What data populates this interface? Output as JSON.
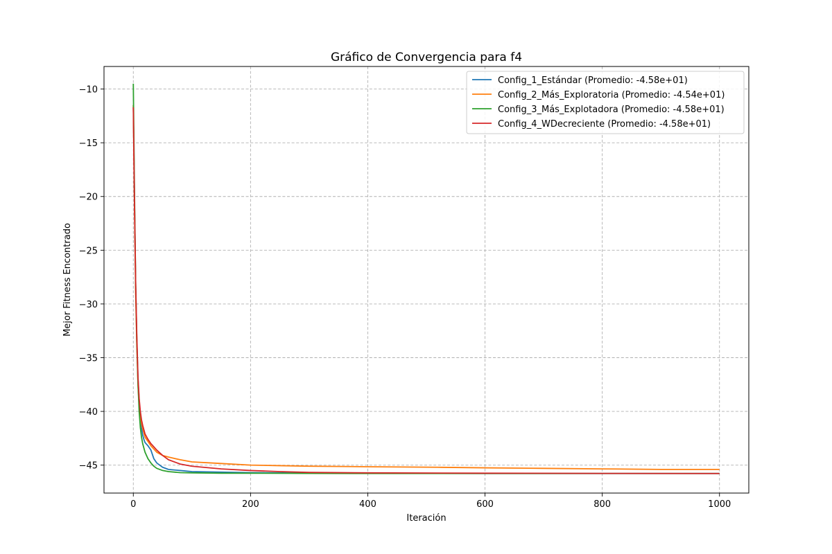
{
  "chart_data": {
    "type": "line",
    "title": "Gráfico de Convergencia para f4",
    "xlabel": "Iteración",
    "ylabel": "Mejor Fitness Encontrado",
    "xlim": [
      -50,
      1050
    ],
    "ylim": [
      -47.6,
      -7.9
    ],
    "xticks": [
      0,
      200,
      400,
      600,
      800,
      1000
    ],
    "xtick_labels": [
      "0",
      "200",
      "400",
      "600",
      "800",
      "1000"
    ],
    "yticks": [
      -10,
      -15,
      -20,
      -25,
      -30,
      -35,
      -40,
      -45
    ],
    "ytick_labels": [
      "−10",
      "−15",
      "−20",
      "−25",
      "−30",
      "−35",
      "−40",
      "−45"
    ],
    "grid": true,
    "legend_position": "top-right",
    "series": [
      {
        "name": "Config_1_Estándar (Promedio: -4.58e+01)",
        "color": "#1f77b4",
        "x": [
          0,
          2,
          4,
          6,
          8,
          10,
          12,
          14,
          16,
          18,
          20,
          25,
          30,
          35,
          40,
          50,
          60,
          80,
          100,
          150,
          200,
          300,
          400,
          600,
          800,
          1000
        ],
        "y": [
          -11.5,
          -20.5,
          -28.5,
          -33.5,
          -37.0,
          -39.0,
          -40.3,
          -41.5,
          -42.2,
          -42.6,
          -42.9,
          -43.2,
          -43.6,
          -44.4,
          -44.8,
          -45.2,
          -45.4,
          -45.5,
          -45.6,
          -45.65,
          -45.7,
          -45.75,
          -45.75,
          -45.78,
          -45.78,
          -45.78
        ]
      },
      {
        "name": "Config_2_Más_Exploratoria (Promedio: -4.54e+01)",
        "color": "#ff7f0e",
        "x": [
          0,
          2,
          4,
          6,
          8,
          10,
          12,
          14,
          16,
          18,
          20,
          25,
          30,
          35,
          40,
          50,
          60,
          80,
          100,
          150,
          200,
          250,
          300,
          400,
          520,
          600,
          700,
          800,
          900,
          1000
        ],
        "y": [
          -11.5,
          -21.0,
          -29.0,
          -34.0,
          -37.5,
          -39.5,
          -40.5,
          -41.1,
          -41.6,
          -42.0,
          -42.4,
          -42.8,
          -43.2,
          -43.5,
          -43.8,
          -44.1,
          -44.25,
          -44.5,
          -44.7,
          -44.85,
          -45.0,
          -45.05,
          -45.1,
          -45.15,
          -45.2,
          -45.25,
          -45.3,
          -45.35,
          -45.4,
          -45.4
        ]
      },
      {
        "name": "Config_3_Más_Explotadora (Promedio: -4.58e+01)",
        "color": "#2ca02c",
        "x": [
          0,
          2,
          4,
          6,
          8,
          10,
          12,
          14,
          16,
          18,
          20,
          25,
          30,
          35,
          40,
          50,
          60,
          80,
          100,
          150,
          200,
          300,
          400,
          600,
          800,
          1000
        ],
        "y": [
          -9.5,
          -19.5,
          -28.0,
          -33.5,
          -37.5,
          -40.0,
          -41.5,
          -42.4,
          -43.0,
          -43.4,
          -43.8,
          -44.4,
          -44.8,
          -45.1,
          -45.3,
          -45.5,
          -45.6,
          -45.7,
          -45.72,
          -45.75,
          -45.75,
          -45.77,
          -45.78,
          -45.78,
          -45.78,
          -45.78
        ]
      },
      {
        "name": "Config_4_WDecreciente (Promedio: -4.58e+01)",
        "color": "#d62728",
        "x": [
          0,
          2,
          4,
          6,
          8,
          10,
          12,
          14,
          16,
          18,
          20,
          25,
          30,
          35,
          40,
          50,
          60,
          80,
          100,
          150,
          200,
          250,
          300,
          400,
          600,
          800,
          1000
        ],
        "y": [
          -11.7,
          -20.5,
          -28.0,
          -33.0,
          -36.8,
          -38.8,
          -40.0,
          -40.8,
          -41.3,
          -41.7,
          -42.1,
          -42.6,
          -43.0,
          -43.3,
          -43.6,
          -44.1,
          -44.5,
          -44.9,
          -45.1,
          -45.35,
          -45.5,
          -45.6,
          -45.68,
          -45.72,
          -45.75,
          -45.77,
          -45.78
        ]
      }
    ]
  }
}
